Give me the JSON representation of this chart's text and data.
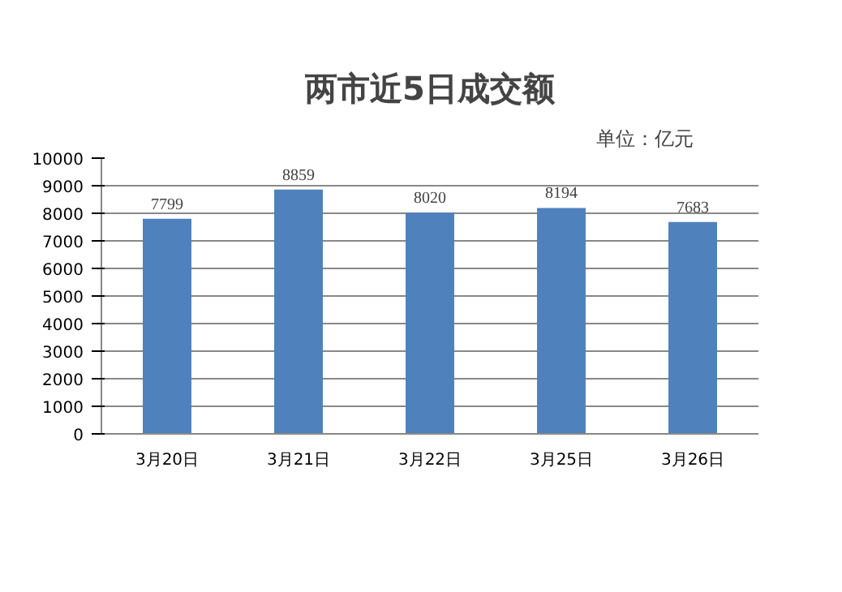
{
  "chart_data": {
    "type": "bar",
    "title": "两市近5日成交额",
    "annotations": [
      "单位：亿元"
    ],
    "categories": [
      "3月20日",
      "3月21日",
      "3月22日",
      "3月25日",
      "3月26日"
    ],
    "values": [
      7799,
      8859,
      8020,
      8194,
      7683
    ],
    "color": "#4f81bd",
    "ylim": [
      0,
      10000
    ],
    "yticks": [
      0,
      1000,
      2000,
      3000,
      4000,
      5000,
      6000,
      7000,
      8000,
      9000,
      10000
    ],
    "grid": "y",
    "data_labels": true
  }
}
